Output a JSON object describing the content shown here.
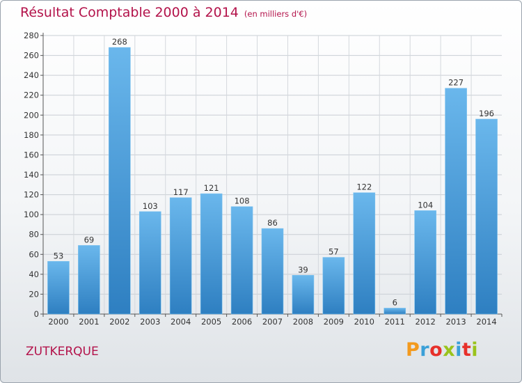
{
  "title": "Résultat Comptable 2000 à 2014",
  "subtitle": "(en milliers d'€)",
  "commune": "ZUTKERQUE",
  "logo": {
    "letters": [
      "P",
      "r",
      "o",
      "x",
      "i",
      "t",
      "i"
    ],
    "colors": [
      "#f39a1e",
      "#3aa0d8",
      "#e7302a",
      "#9ac31c",
      "#3aa0d8",
      "#e7302a",
      "#9ac31c"
    ]
  },
  "colors": {
    "bar_light": "#6ab7ec",
    "bar_dark": "#2e7fc1",
    "accent": "#b3124a"
  },
  "chart_data": {
    "type": "bar",
    "title": "Résultat Comptable 2000 à 2014",
    "subtitle": "(en milliers d'€)",
    "categories": [
      "2000",
      "2001",
      "2002",
      "2003",
      "2004",
      "2005",
      "2006",
      "2007",
      "2008",
      "2009",
      "2010",
      "2011",
      "2012",
      "2013",
      "2014"
    ],
    "values": [
      53,
      69,
      268,
      103,
      117,
      121,
      108,
      86,
      39,
      57,
      122,
      6,
      104,
      227,
      196
    ],
    "ylim": [
      0,
      280
    ],
    "yticks": [
      0,
      20,
      40,
      60,
      80,
      100,
      120,
      140,
      160,
      180,
      200,
      220,
      240,
      260,
      280
    ],
    "grid": true,
    "data_labels": true
  }
}
